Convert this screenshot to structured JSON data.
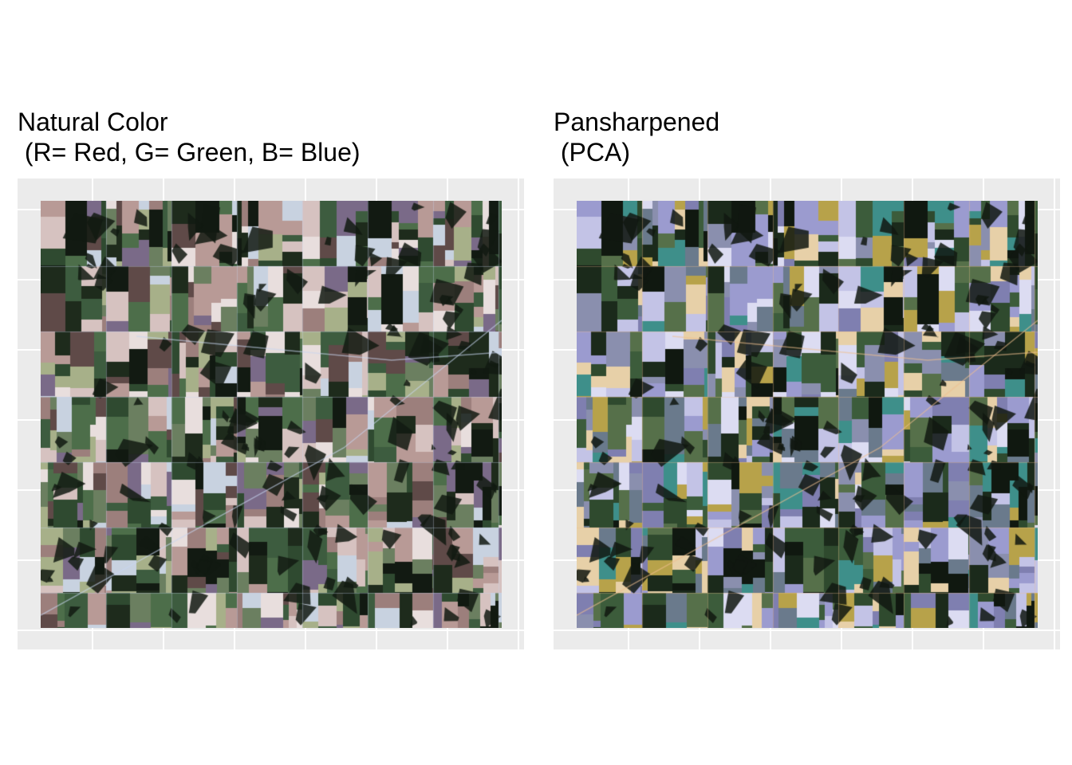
{
  "panels": [
    {
      "title_line1": "Natural Color",
      "title_line2": " (R= Red, G= Green, B= Blue)",
      "image": "natural-color-satellite-imagery",
      "palette": [
        "#1e2b1c",
        "#2f4a30",
        "#3d5c3f",
        "#4d6e4a",
        "#6b7f60",
        "#9c7f7c",
        "#b89a96",
        "#d6c2c0",
        "#e8dedd",
        "#5f4a48",
        "#7a6a88",
        "#c8d2e0",
        "#a7b089",
        "#121a12"
      ]
    },
    {
      "title_line1": "Pansharpened",
      "title_line2": " (PCA)",
      "image": "pansharpened-pca-satellite-imagery",
      "palette": [
        "#1b2a1b",
        "#2f4a2e",
        "#3c5c3b",
        "#56704a",
        "#6a7a8c",
        "#7f7fb0",
        "#9b9bcf",
        "#c3c3e6",
        "#dcdcf2",
        "#8a8fae",
        "#3e8f8a",
        "#b7a24a",
        "#e7d0a8",
        "#101810"
      ]
    }
  ]
}
